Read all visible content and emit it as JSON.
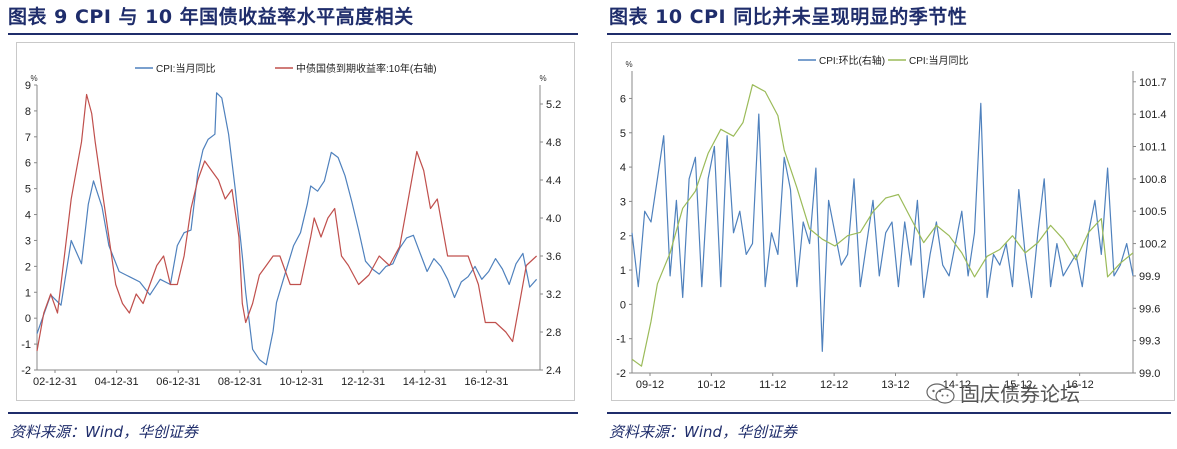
{
  "left_panel": {
    "title": "图表 9   CPI 与 10 年国债收益率水平高度相关",
    "source": "资料来源：Wind，华创证券"
  },
  "right_panel": {
    "title": "图表 10   CPI 同比并未呈现明显的季节性",
    "source": "资料来源：Wind，华创证券"
  },
  "watermark": {
    "text": "固庆债券论坛",
    "icon": "wechat-icon"
  },
  "chart_data": [
    {
      "type": "line",
      "left_axis_unit": "%",
      "right_axis_unit": "%",
      "x_tick_labels": [
        "02-12-31",
        "04-12-31",
        "06-12-31",
        "08-12-31",
        "10-12-31",
        "12-12-31",
        "14-12-31",
        "16-12-31"
      ],
      "x_range": [
        2002.9,
        2017.6
      ],
      "ylim": [
        -2,
        9
      ],
      "yticks": [
        -2,
        -1,
        0,
        1,
        2,
        3,
        4,
        5,
        6,
        7,
        8,
        9
      ],
      "y2lim": [
        2.4,
        5.4
      ],
      "y2ticks": [
        2.4,
        2.8,
        3.2,
        3.6,
        4.0,
        4.4,
        4.8,
        5.2
      ],
      "grid": false,
      "legend_position": "top",
      "colors": {
        "cpi": "#4f81bd",
        "bond": "#c0504d"
      },
      "series": [
        {
          "name": "CPI:当月同比",
          "axis": "left",
          "x": [
            2002.9,
            2003.3,
            2003.6,
            2003.9,
            2004.2,
            2004.4,
            2004.55,
            2004.8,
            2005.0,
            2005.3,
            2005.6,
            2005.9,
            2006.2,
            2006.5,
            2006.8,
            2007.0,
            2007.2,
            2007.4,
            2007.6,
            2007.75,
            2007.9,
            2008.1,
            2008.15,
            2008.3,
            2008.5,
            2008.7,
            2008.9,
            2009.0,
            2009.2,
            2009.4,
            2009.6,
            2009.8,
            2009.9,
            2010.1,
            2010.4,
            2010.6,
            2010.8,
            2010.9,
            2011.1,
            2011.3,
            2011.5,
            2011.7,
            2011.9,
            2012.1,
            2012.3,
            2012.5,
            2012.7,
            2012.9,
            2013.1,
            2013.3,
            2013.5,
            2013.7,
            2013.9,
            2014.1,
            2014.3,
            2014.5,
            2014.7,
            2014.9,
            2015.1,
            2015.3,
            2015.5,
            2015.7,
            2015.9,
            2016.1,
            2016.3,
            2016.5,
            2016.7,
            2016.9,
            2017.1,
            2017.3,
            2017.5
          ],
          "y": [
            -0.6,
            0.9,
            0.5,
            3.0,
            2.1,
            4.4,
            5.3,
            4.3,
            2.8,
            1.8,
            1.6,
            1.4,
            0.9,
            1.5,
            1.3,
            2.8,
            3.3,
            3.4,
            5.6,
            6.5,
            6.9,
            7.1,
            8.7,
            8.5,
            7.1,
            4.9,
            2.4,
            1.0,
            -1.2,
            -1.6,
            -1.8,
            -0.5,
            0.6,
            1.5,
            2.8,
            3.3,
            4.4,
            5.1,
            4.9,
            5.3,
            6.4,
            6.2,
            5.5,
            4.5,
            3.4,
            2.2,
            1.9,
            1.7,
            2.0,
            2.1,
            2.7,
            3.1,
            3.2,
            2.5,
            1.8,
            2.3,
            2.0,
            1.5,
            0.8,
            1.4,
            1.6,
            2.0,
            1.5,
            1.8,
            2.3,
            1.9,
            1.3,
            2.1,
            2.5,
            1.2,
            1.5
          ]
        },
        {
          "name": "中债国债到期收益率:10年(右轴)",
          "axis": "right",
          "x": [
            2002.9,
            2003.1,
            2003.3,
            2003.5,
            2003.7,
            2003.9,
            2004.0,
            2004.2,
            2004.35,
            2004.5,
            2004.6,
            2004.8,
            2005.0,
            2005.2,
            2005.4,
            2005.6,
            2005.8,
            2006.0,
            2006.2,
            2006.4,
            2006.6,
            2006.8,
            2007.0,
            2007.2,
            2007.4,
            2007.6,
            2007.8,
            2008.0,
            2008.2,
            2008.4,
            2008.6,
            2008.8,
            2008.9,
            2009.0,
            2009.2,
            2009.4,
            2009.6,
            2009.8,
            2010.0,
            2010.3,
            2010.6,
            2010.9,
            2011.0,
            2011.2,
            2011.4,
            2011.6,
            2011.8,
            2012.0,
            2012.3,
            2012.6,
            2012.9,
            2013.2,
            2013.5,
            2013.7,
            2013.9,
            2014.0,
            2014.2,
            2014.4,
            2014.6,
            2014.9,
            2015.2,
            2015.5,
            2015.8,
            2016.0,
            2016.3,
            2016.6,
            2016.8,
            2017.0,
            2017.2,
            2017.5
          ],
          "y": [
            2.6,
            3.0,
            3.2,
            3.0,
            3.6,
            4.2,
            4.4,
            4.8,
            5.3,
            5.1,
            4.8,
            4.3,
            3.8,
            3.3,
            3.1,
            3.0,
            3.2,
            3.1,
            3.3,
            3.5,
            3.6,
            3.3,
            3.3,
            3.6,
            4.1,
            4.4,
            4.6,
            4.5,
            4.4,
            4.2,
            4.3,
            3.8,
            3.1,
            2.9,
            3.1,
            3.4,
            3.5,
            3.6,
            3.6,
            3.3,
            3.3,
            3.8,
            4.0,
            3.8,
            4.0,
            4.1,
            3.6,
            3.5,
            3.3,
            3.4,
            3.6,
            3.5,
            3.7,
            4.1,
            4.5,
            4.7,
            4.5,
            4.1,
            4.2,
            3.6,
            3.6,
            3.6,
            3.3,
            2.9,
            2.9,
            2.8,
            2.7,
            3.1,
            3.5,
            3.6
          ]
        }
      ]
    },
    {
      "type": "line",
      "left_axis_unit": "%",
      "right_axis_unit": "",
      "x_tick_labels": [
        "09-12",
        "10-12",
        "11-12",
        "12-12",
        "13-12",
        "14-12",
        "15-12",
        "16-12"
      ],
      "x_range": [
        2009.6,
        2017.5
      ],
      "ylim": [
        -2,
        6.8
      ],
      "yticks": [
        -2,
        -1,
        0,
        1,
        2,
        3,
        4,
        5,
        6
      ],
      "y2lim": [
        99.0,
        101.8
      ],
      "y2ticks": [
        99.0,
        99.3,
        99.6,
        99.9,
        100.2,
        100.5,
        100.8,
        101.1,
        101.4,
        101.7
      ],
      "grid": false,
      "legend_position": "top",
      "colors": {
        "mom": "#4f81bd",
        "yoy": "#9bbb59"
      },
      "series": [
        {
          "name": "CPI:环比(右轴)",
          "axis": "right",
          "x": [
            2009.6,
            2009.7,
            2009.8,
            2009.9,
            2010.0,
            2010.1,
            2010.2,
            2010.3,
            2010.4,
            2010.5,
            2010.6,
            2010.7,
            2010.8,
            2010.9,
            2011.0,
            2011.1,
            2011.2,
            2011.3,
            2011.4,
            2011.5,
            2011.6,
            2011.7,
            2011.8,
            2011.9,
            2012.0,
            2012.1,
            2012.2,
            2012.3,
            2012.4,
            2012.5,
            2012.6,
            2012.7,
            2012.8,
            2012.9,
            2013.0,
            2013.1,
            2013.2,
            2013.3,
            2013.4,
            2013.5,
            2013.6,
            2013.7,
            2013.8,
            2013.9,
            2014.0,
            2014.1,
            2014.2,
            2014.3,
            2014.4,
            2014.5,
            2014.6,
            2014.7,
            2014.8,
            2014.9,
            2015.0,
            2015.1,
            2015.2,
            2015.3,
            2015.4,
            2015.5,
            2015.6,
            2015.7,
            2015.8,
            2015.9,
            2016.0,
            2016.1,
            2016.2,
            2016.3,
            2016.4,
            2016.5,
            2016.6,
            2016.7,
            2016.8,
            2016.9,
            2017.0,
            2017.1,
            2017.2,
            2017.3,
            2017.4,
            2017.5
          ],
          "y": [
            100.3,
            99.8,
            100.5,
            100.4,
            100.8,
            101.2,
            99.9,
            100.6,
            99.7,
            100.8,
            101.0,
            99.8,
            100.8,
            101.1,
            99.8,
            101.2,
            100.3,
            100.5,
            100.1,
            100.2,
            101.4,
            99.8,
            100.3,
            100.1,
            101.0,
            100.7,
            99.8,
            100.4,
            100.2,
            100.9,
            99.2,
            100.6,
            100.3,
            100.0,
            100.1,
            100.8,
            99.8,
            100.2,
            100.6,
            99.9,
            100.3,
            100.4,
            99.8,
            100.4,
            100.0,
            100.6,
            99.7,
            100.1,
            100.4,
            100.0,
            99.9,
            100.2,
            100.5,
            99.9,
            100.3,
            101.5,
            99.7,
            100.1,
            100.0,
            100.2,
            99.8,
            100.7,
            100.1,
            99.7,
            100.3,
            100.8,
            99.8,
            100.2,
            99.9,
            100.0,
            100.1,
            99.8,
            100.3,
            100.6,
            100.1,
            100.9,
            99.9,
            100.0,
            100.2,
            99.9
          ]
        },
        {
          "name": "CPI:当月同比",
          "axis": "left",
          "x": [
            2009.6,
            2009.75,
            2009.9,
            2010.0,
            2010.2,
            2010.4,
            2010.6,
            2010.8,
            2011.0,
            2011.2,
            2011.35,
            2011.5,
            2011.7,
            2011.9,
            2012.0,
            2012.2,
            2012.4,
            2012.6,
            2012.8,
            2013.0,
            2013.2,
            2013.4,
            2013.6,
            2013.8,
            2014.0,
            2014.2,
            2014.4,
            2014.6,
            2014.8,
            2015.0,
            2015.2,
            2015.4,
            2015.6,
            2015.8,
            2016.0,
            2016.2,
            2016.4,
            2016.6,
            2016.8,
            2017.0,
            2017.1,
            2017.3,
            2017.5
          ],
          "y": [
            -1.6,
            -1.8,
            -0.5,
            0.6,
            1.5,
            2.8,
            3.3,
            4.4,
            5.1,
            4.9,
            5.3,
            6.4,
            6.2,
            5.5,
            4.5,
            3.4,
            2.2,
            1.9,
            1.7,
            2.0,
            2.1,
            2.7,
            3.1,
            3.2,
            2.5,
            1.8,
            2.3,
            2.0,
            1.5,
            0.8,
            1.4,
            1.6,
            2.0,
            1.5,
            1.8,
            2.3,
            1.9,
            1.3,
            2.1,
            2.5,
            0.8,
            1.2,
            1.5
          ]
        }
      ]
    }
  ]
}
